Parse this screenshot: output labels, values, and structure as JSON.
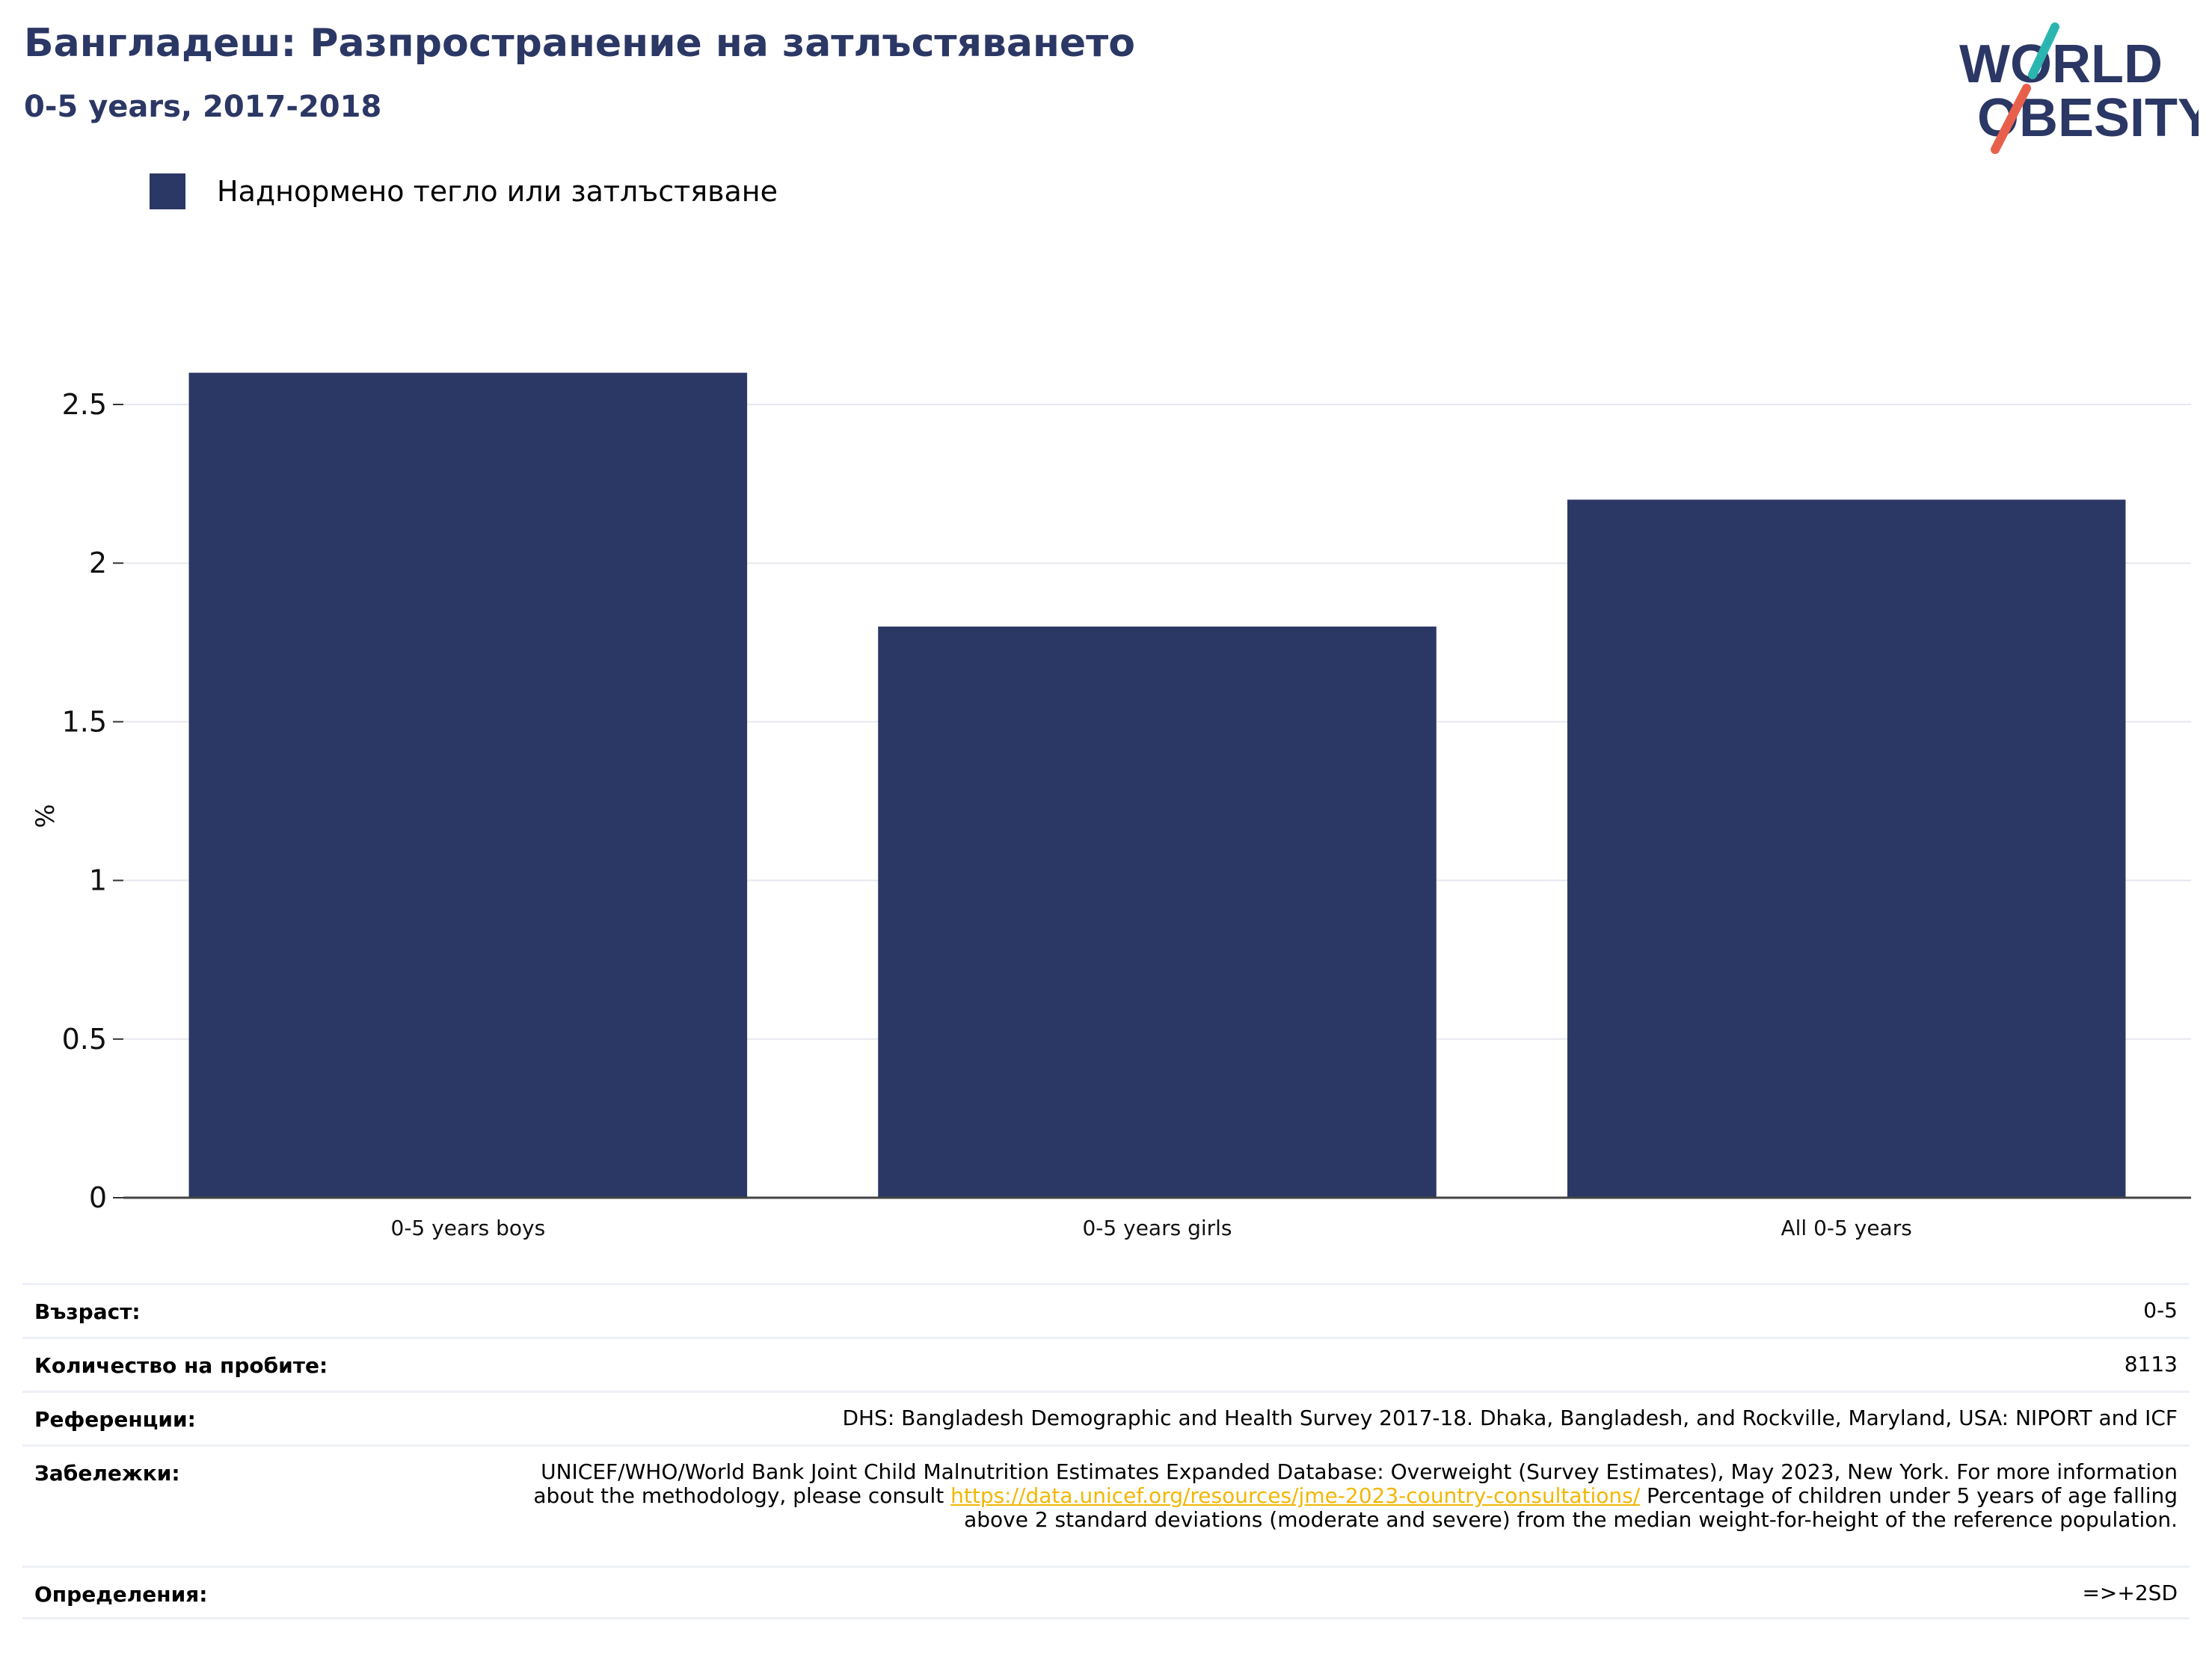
{
  "header": {
    "title": "Бангладеш: Разпространение на затлъстяването",
    "subtitle": "0-5 years, 2017-2018"
  },
  "logo": {
    "line1": "WORLD",
    "line2": "OBESITY",
    "icon": "world-obesity-logo",
    "colors": {
      "text": "#2b3764",
      "slash_top": "#2bb5b0",
      "slash_bottom": "#e8604c"
    }
  },
  "legend": {
    "label": "Наднормено тегло или затлъстяване",
    "color": "#2b3764"
  },
  "chart_data": {
    "type": "bar",
    "categories": [
      "0-5 years boys",
      "0-5 years girls",
      "All 0-5 years"
    ],
    "series": [
      {
        "name": "Наднормено тегло или затлъстяване",
        "values": [
          2.6,
          1.8,
          2.2
        ],
        "color": "#2b3764"
      }
    ],
    "ylabel": "%",
    "ylim": [
      0,
      2.75
    ],
    "yticks": [
      0,
      0.5,
      1,
      1.5,
      2,
      2.5
    ],
    "ytick_labels": [
      "0",
      "0.5",
      "1",
      "1.5",
      "2",
      "2.5"
    ],
    "grid": true,
    "legend": "top-left"
  },
  "info": {
    "age_label": "Възраст:",
    "age_value": "0-5",
    "sample_label": "Количество на пробите:",
    "sample_value": "8113",
    "refs_label": "Референции:",
    "refs_value": "DHS: Bangladesh Demographic and Health Survey 2017-18. Dhaka, Bangladesh, and Rockville, Maryland, USA: NIPORT and ICF",
    "notes_label": "Забележки:",
    "notes_before": "UNICEF/WHO/World Bank Joint Child Malnutrition Estimates Expanded Database: Overweight (Survey Estimates), May 2023, New York. For more information about the methodology, please consult ",
    "notes_link": "https://data.unicef.org/resources/jme-2023-country-consultations/",
    "notes_after": " Percentage of children under 5 years of age falling above 2 standard deviations (moderate and severe) from the median weight-for-height of the reference population.",
    "defs_label": "Определения:",
    "defs_value": "=>+2SD"
  }
}
